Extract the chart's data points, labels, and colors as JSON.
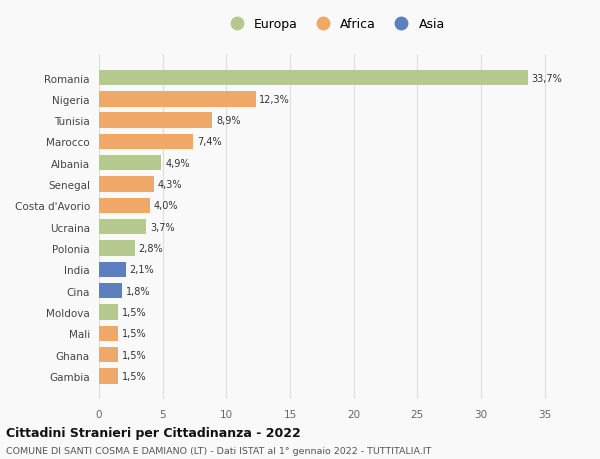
{
  "countries": [
    "Romania",
    "Nigeria",
    "Tunisia",
    "Marocco",
    "Albania",
    "Senegal",
    "Costa d'Avorio",
    "Ucraina",
    "Polonia",
    "India",
    "Cina",
    "Moldova",
    "Mali",
    "Ghana",
    "Gambia"
  ],
  "values": [
    33.7,
    12.3,
    8.9,
    7.4,
    4.9,
    4.3,
    4.0,
    3.7,
    2.8,
    2.1,
    1.8,
    1.5,
    1.5,
    1.5,
    1.5
  ],
  "labels": [
    "33,7%",
    "12,3%",
    "8,9%",
    "7,4%",
    "4,9%",
    "4,3%",
    "4,0%",
    "3,7%",
    "2,8%",
    "2,1%",
    "1,8%",
    "1,5%",
    "1,5%",
    "1,5%",
    "1,5%"
  ],
  "continents": [
    "Europa",
    "Africa",
    "Africa",
    "Africa",
    "Europa",
    "Africa",
    "Africa",
    "Europa",
    "Europa",
    "Asia",
    "Asia",
    "Europa",
    "Africa",
    "Africa",
    "Africa"
  ],
  "colors": {
    "Europa": "#b5c98e",
    "Africa": "#f0a868",
    "Asia": "#5b7fbf"
  },
  "legend_labels": [
    "Europa",
    "Africa",
    "Asia"
  ],
  "title": "Cittadini Stranieri per Cittadinanza - 2022",
  "subtitle": "COMUNE DI SANTI COSMA E DAMIANO (LT) - Dati ISTAT al 1° gennaio 2022 - TUTTITALIA.IT",
  "xlim": [
    0,
    37
  ],
  "xticks": [
    0,
    5,
    10,
    15,
    20,
    25,
    30,
    35
  ],
  "bg_color": "#f9f9f9",
  "grid_color": "#dddddd"
}
